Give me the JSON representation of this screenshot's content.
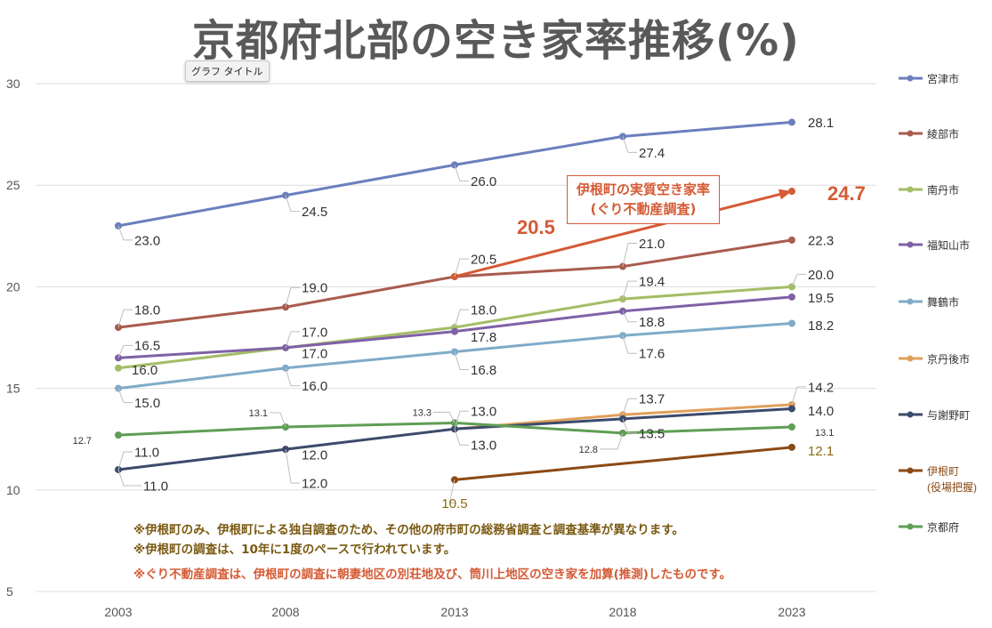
{
  "title": "京都府北部の空き家率推移(%)",
  "tooltip": "グラフ タイトル",
  "notes": [
    {
      "text": "※伊根町のみ、伊根町による独自調査のため、その他の府市町の総務省調査と調査基準が異なります。",
      "color": "#7a5a12"
    },
    {
      "text": "※伊根町の調査は、10年に1度のペースで行われています。",
      "color": "#7a5a12"
    },
    {
      "text": "※ぐり不動産調査は、伊根町の調査に朝妻地区の別荘地及び、筒川上地区の空き家を加算(推測)したものです。",
      "color": "#d55a35"
    }
  ],
  "callout": {
    "line1": "伊根町の実質空き家率",
    "line2": "(ぐり不動産調査)"
  },
  "chart_data": {
    "type": "line",
    "title": "京都府北部の空き家率推移(%)",
    "x": [
      "2003",
      "2008",
      "2013",
      "2018",
      "2023"
    ],
    "ylim": [
      5,
      30
    ],
    "yticks": [
      5,
      10,
      15,
      20,
      25,
      30
    ],
    "grid": true,
    "legend_position": "right",
    "series": [
      {
        "name": "宮津市",
        "color": "#6a7fbd",
        "values": [
          23.0,
          24.5,
          26.0,
          27.4,
          28.1
        ]
      },
      {
        "name": "綾部市",
        "color": "#a85c4e",
        "values": [
          18.0,
          19.0,
          20.5,
          21.0,
          22.3
        ]
      },
      {
        "name": "南丹市",
        "color": "#a3bd66",
        "values": [
          16.0,
          17.0,
          18.0,
          19.4,
          20.0
        ]
      },
      {
        "name": "福知山市",
        "color": "#7f61a6",
        "values": [
          16.5,
          17.0,
          17.8,
          18.8,
          19.5
        ]
      },
      {
        "name": "舞鶴市",
        "color": "#7fabc8",
        "values": [
          15.0,
          16.0,
          16.8,
          17.6,
          18.2
        ]
      },
      {
        "name": "京丹後市",
        "color": "#e0a05a",
        "values": [
          null,
          null,
          13.0,
          13.7,
          14.2
        ]
      },
      {
        "name": "与謝野町",
        "color": "#3c4a6b",
        "values": [
          11.0,
          12.0,
          13.0,
          13.5,
          14.0
        ]
      },
      {
        "name": "伊根町\n(役場把握)",
        "color": "#8c4a14",
        "values": [
          null,
          null,
          10.5,
          null,
          12.1
        ]
      },
      {
        "name": "京都府",
        "color": "#5f9e55",
        "values": [
          12.7,
          13.1,
          13.3,
          12.8,
          13.1
        ]
      }
    ],
    "ine_real": {
      "color": "#d55a35",
      "values": [
        null,
        null,
        20.5,
        null,
        24.7
      ]
    },
    "data_labels": [
      {
        "s": 0,
        "i": 0,
        "t": "23.0",
        "dx": 18,
        "dy": 16,
        "size": 15,
        "color": "#333333"
      },
      {
        "s": 0,
        "i": 1,
        "t": "24.5",
        "dx": 18,
        "dy": 18,
        "size": 15,
        "color": "#333333"
      },
      {
        "s": 0,
        "i": 2,
        "t": "26.0",
        "dx": 18,
        "dy": 18,
        "size": 15,
        "color": "#333333"
      },
      {
        "s": 0,
        "i": 3,
        "t": "27.4",
        "dx": 18,
        "dy": 18,
        "size": 15,
        "color": "#333333"
      },
      {
        "s": 0,
        "i": 4,
        "t": "28.1",
        "dx": 18,
        "dy": 0,
        "size": 15,
        "color": "#333333"
      },
      {
        "s": 1,
        "i": 0,
        "t": "18.0",
        "dx": 18,
        "dy": -20,
        "size": 15,
        "color": "#333333"
      },
      {
        "s": 1,
        "i": 1,
        "t": "19.0",
        "dx": 18,
        "dy": -22,
        "size": 15,
        "color": "#333333"
      },
      {
        "s": 1,
        "i": 2,
        "t": "20.5",
        "dx": 18,
        "dy": -20,
        "size": 15,
        "color": "#333333"
      },
      {
        "s": 1,
        "i": 3,
        "t": "21.0",
        "dx": 18,
        "dy": -26,
        "size": 15,
        "color": "#333333"
      },
      {
        "s": 1,
        "i": 4,
        "t": "22.3",
        "dx": 18,
        "dy": 0,
        "size": 15,
        "color": "#333333"
      },
      {
        "s": 2,
        "i": 0,
        "t": "16.0",
        "dx": 15,
        "dy": 2,
        "size": 15,
        "color": "#333333"
      },
      {
        "s": 2,
        "i": 1,
        "t": "17.0",
        "dx": 18,
        "dy": -18,
        "size": 15,
        "color": "#333333"
      },
      {
        "s": 2,
        "i": 2,
        "t": "18.0",
        "dx": 18,
        "dy": -20,
        "size": 15,
        "color": "#333333"
      },
      {
        "s": 2,
        "i": 3,
        "t": "19.4",
        "dx": 18,
        "dy": -20,
        "size": 15,
        "color": "#333333"
      },
      {
        "s": 2,
        "i": 4,
        "t": "20.0",
        "dx": 18,
        "dy": -14,
        "size": 15,
        "color": "#333333"
      },
      {
        "s": 3,
        "i": 0,
        "t": "16.5",
        "dx": 18,
        "dy": -14,
        "size": 15,
        "color": "#333333"
      },
      {
        "s": 3,
        "i": 1,
        "t": "17.0",
        "dx": 18,
        "dy": 6,
        "size": 15,
        "color": "#333333"
      },
      {
        "s": 3,
        "i": 2,
        "t": "17.8",
        "dx": 18,
        "dy": 6,
        "size": 15,
        "color": "#333333"
      },
      {
        "s": 3,
        "i": 3,
        "t": "18.8",
        "dx": 18,
        "dy": 12,
        "size": 15,
        "color": "#333333"
      },
      {
        "s": 3,
        "i": 4,
        "t": "19.5",
        "dx": 18,
        "dy": 1,
        "size": 15,
        "color": "#333333"
      },
      {
        "s": 4,
        "i": 0,
        "t": "15.0",
        "dx": 18,
        "dy": 16,
        "size": 15,
        "color": "#333333"
      },
      {
        "s": 4,
        "i": 1,
        "t": "16.0",
        "dx": 18,
        "dy": 20,
        "size": 15,
        "color": "#333333"
      },
      {
        "s": 4,
        "i": 2,
        "t": "16.8",
        "dx": 18,
        "dy": 20,
        "size": 15,
        "color": "#333333"
      },
      {
        "s": 4,
        "i": 3,
        "t": "17.6",
        "dx": 18,
        "dy": 20,
        "size": 15,
        "color": "#333333"
      },
      {
        "s": 4,
        "i": 4,
        "t": "18.2",
        "dx": 18,
        "dy": 2,
        "size": 15,
        "color": "#333333"
      },
      {
        "s": 5,
        "i": 3,
        "t": "13.7",
        "dx": 18,
        "dy": -18,
        "size": 15,
        "color": "#333333"
      },
      {
        "s": 5,
        "i": 4,
        "t": "14.2",
        "dx": 18,
        "dy": -20,
        "size": 15,
        "color": "#333333"
      },
      {
        "s": 6,
        "i": 0,
        "t": "11.0",
        "dx": 18,
        "dy": -20,
        "size": 15,
        "color": "#333333"
      },
      {
        "s": 6,
        "i": 0,
        "t": "11.0",
        "dx": 28,
        "dy": 18,
        "size": 15,
        "color": "#333333"
      },
      {
        "s": 6,
        "i": 1,
        "t": "12.0",
        "dx": 18,
        "dy": 6,
        "size": 15,
        "color": "#333333"
      },
      {
        "s": 6,
        "i": 1,
        "t": "12.0",
        "dx": 18,
        "dy": 38,
        "size": 15,
        "color": "#333333"
      },
      {
        "s": 6,
        "i": 2,
        "t": "13.0",
        "dx": 18,
        "dy": -20,
        "size": 15,
        "color": "#333333"
      },
      {
        "s": 6,
        "i": 2,
        "t": "13.0",
        "dx": 18,
        "dy": 18,
        "size": 15,
        "color": "#333333"
      },
      {
        "s": 6,
        "i": 3,
        "t": "13.5",
        "dx": 18,
        "dy": 16,
        "size": 15,
        "color": "#333333"
      },
      {
        "s": 6,
        "i": 4,
        "t": "14.0",
        "dx": 18,
        "dy": 2,
        "size": 15,
        "color": "#333333"
      },
      {
        "s": 7,
        "i": 2,
        "t": "10.5",
        "dx": 0,
        "dy": 26,
        "size": 15,
        "color": "#8c6a14"
      },
      {
        "s": 7,
        "i": 4,
        "t": "12.1",
        "dx": 18,
        "dy": 4,
        "size": 15,
        "color": "#8c6a14"
      },
      {
        "s": 8,
        "i": 0,
        "t": "12.7",
        "dx": -30,
        "dy": 6,
        "size": 11,
        "color": "#333333"
      },
      {
        "s": 8,
        "i": 1,
        "t": "13.1",
        "dx": -20,
        "dy": -16,
        "size": 11,
        "color": "#333333"
      },
      {
        "s": 8,
        "i": 2,
        "t": "13.3",
        "dx": -26,
        "dy": -12,
        "size": 11,
        "color": "#333333"
      },
      {
        "s": 8,
        "i": 3,
        "t": "12.8",
        "dx": -28,
        "dy": 18,
        "size": 11,
        "color": "#333333"
      },
      {
        "s": 8,
        "i": 4,
        "t": "13.1",
        "dx": 26,
        "dy": 6,
        "size": 11,
        "color": "#333333"
      },
      {
        "s": 9,
        "i": 2,
        "t": "20.5",
        "dx": 70,
        "dy": -56,
        "size": 22,
        "color": "#d55a35"
      },
      {
        "s": 9,
        "i": 4,
        "t": "24.7",
        "dx": 40,
        "dy": 2,
        "size": 22,
        "color": "#d55a35"
      }
    ]
  }
}
